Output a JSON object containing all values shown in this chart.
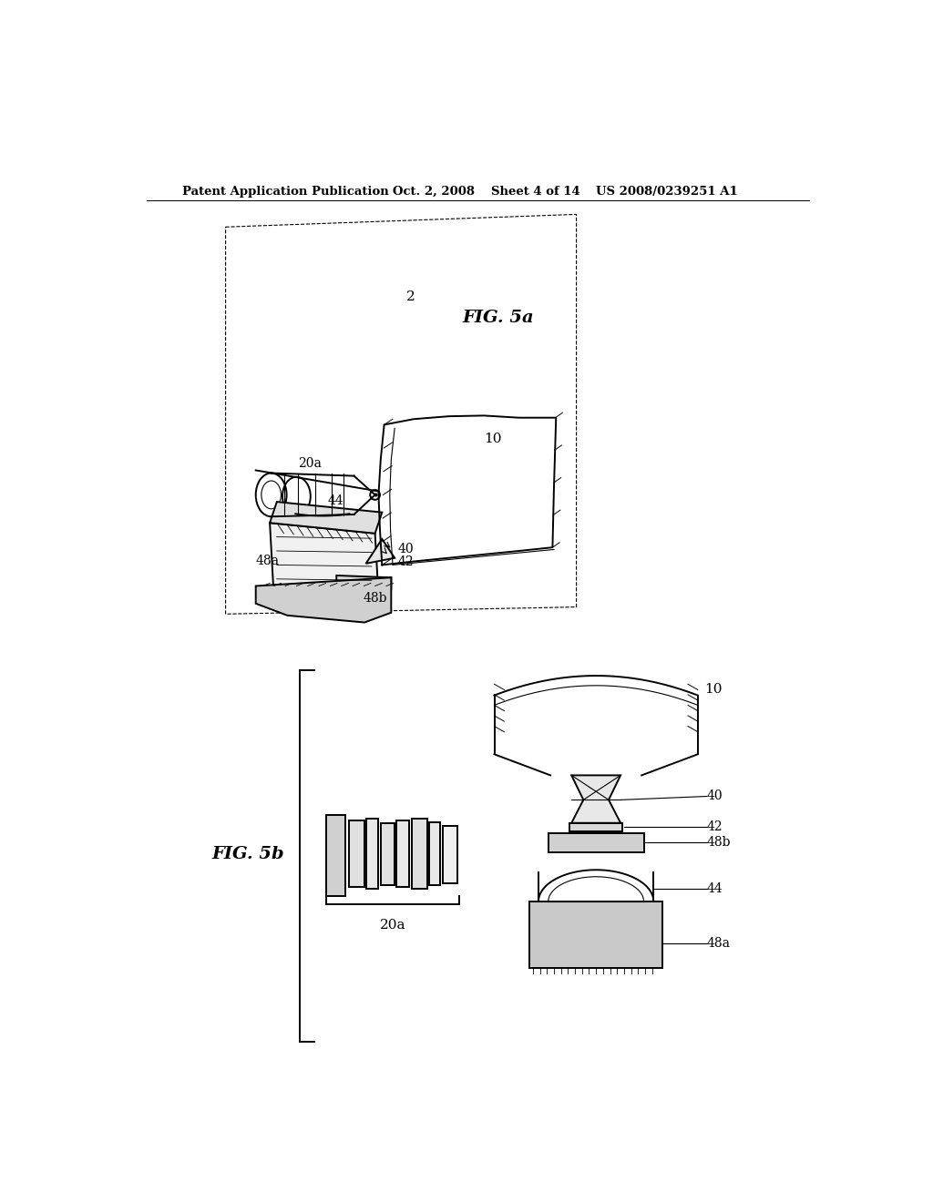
{
  "background_color": "#ffffff",
  "line_color": "#000000",
  "header_text": "Patent Application Publication",
  "header_date": "Oct. 2, 2008",
  "header_sheet": "Sheet 4 of 14",
  "header_patent": "US 2008/0239251 A1",
  "fig5a_label": "FIG. 5a",
  "fig5b_label": "FIG. 5b"
}
